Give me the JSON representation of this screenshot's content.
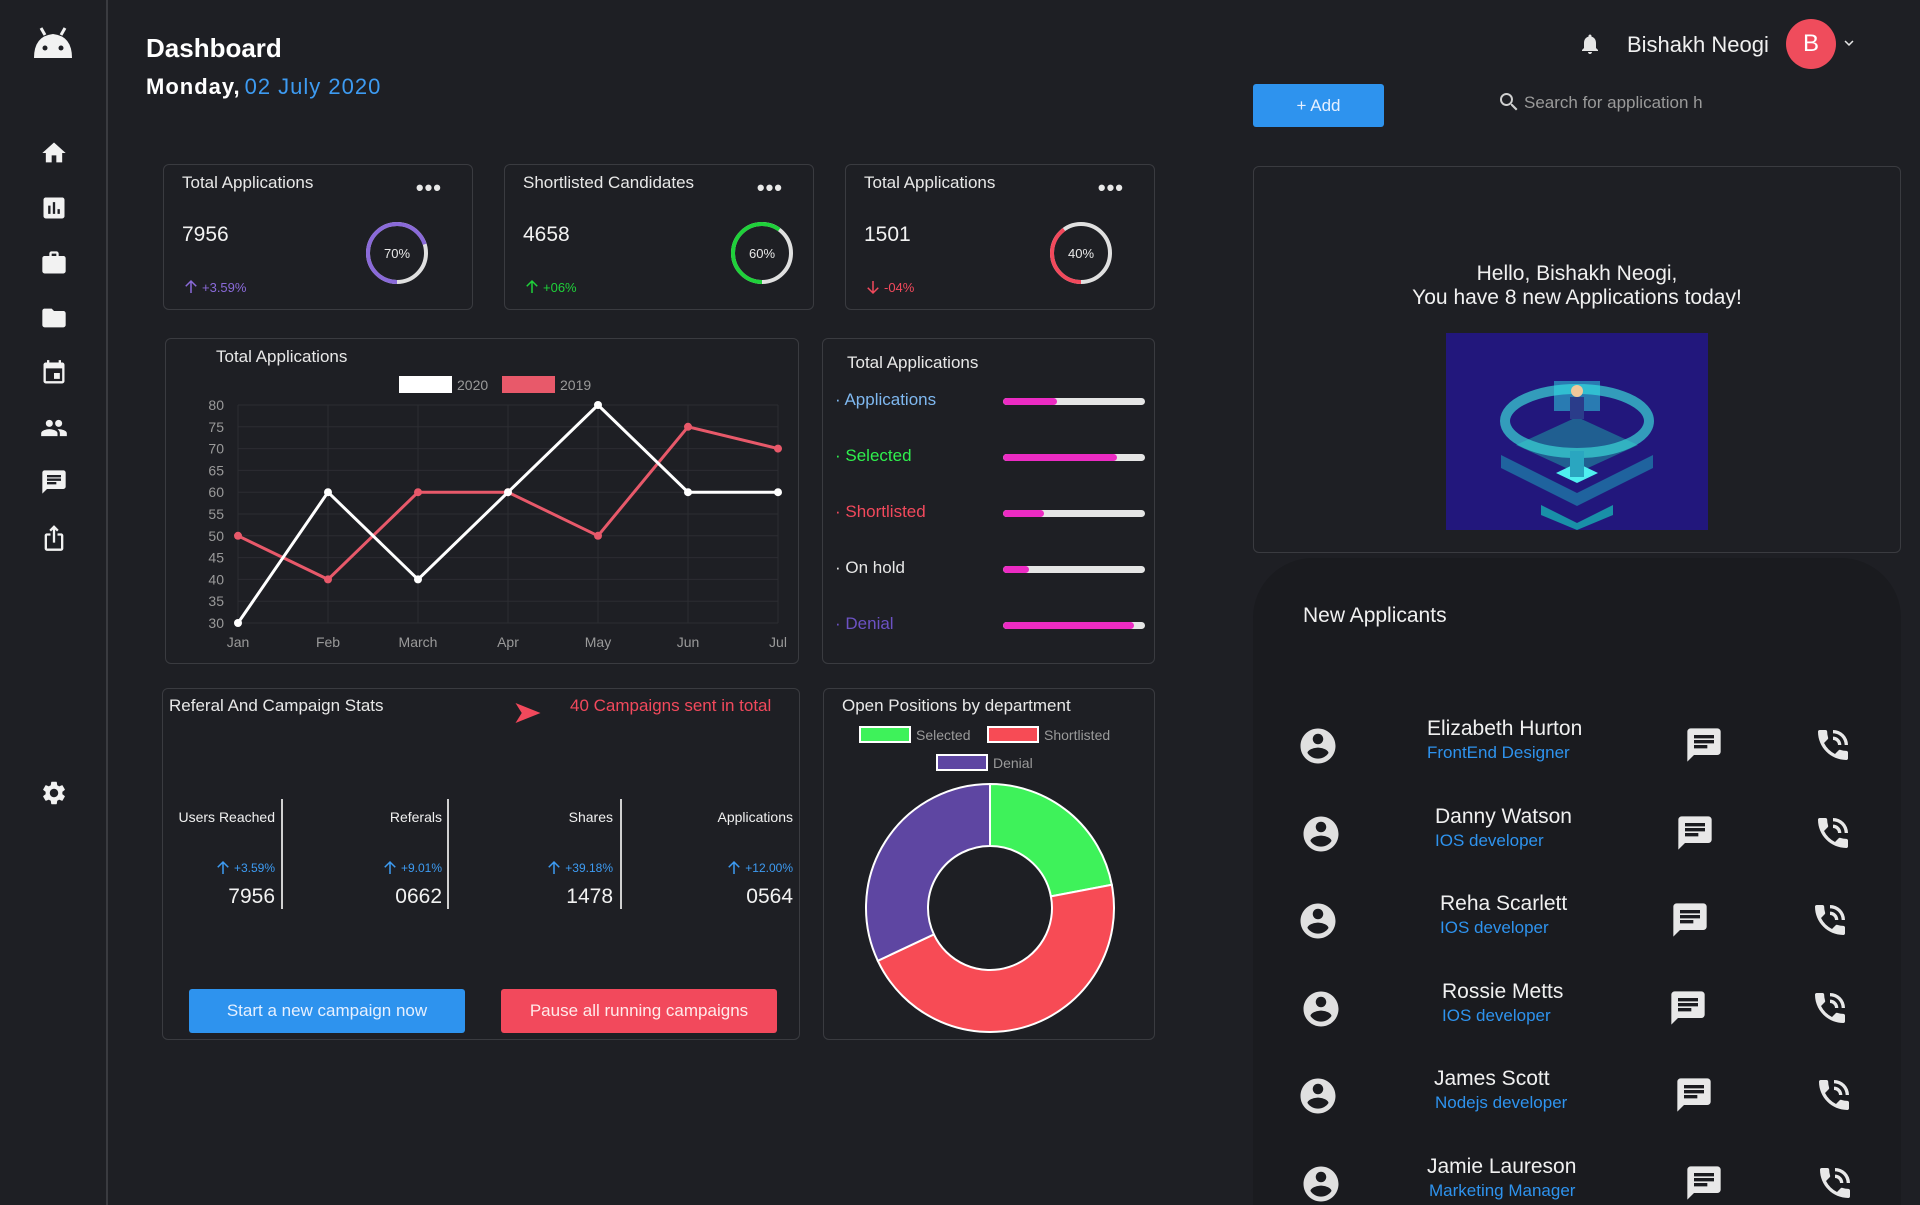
{
  "header": {
    "title": "Dashboard",
    "day": "Monday,",
    "date": "02 July 2020",
    "user_name": "Bishakh Neogi",
    "avatar_letter": "B",
    "add_label": "+ Add",
    "search_placeholder": "Search for application h"
  },
  "sidebar": {
    "icons": [
      "android-logo-icon",
      "home-icon",
      "bar-chart-icon",
      "briefcase-icon",
      "folder-icon",
      "calendar-icon",
      "people-icon",
      "message-icon",
      "share-icon",
      "settings-icon"
    ]
  },
  "stats": [
    {
      "title": "Total Applications",
      "value": "7956",
      "change": "+3.59%",
      "direction": "up",
      "percent": 70,
      "percent_label": "70%",
      "color": "#8a6ad9",
      "change_color": "#8a6ad9"
    },
    {
      "title": "Shortlisted Candidates",
      "value": "4658",
      "change": "+06%",
      "direction": "up",
      "percent": 60,
      "percent_label": "60%",
      "color": "#1fd13a",
      "change_color": "#1fd13a"
    },
    {
      "title": "Total Applications",
      "value": "1501",
      "change": "-04%",
      "direction": "down",
      "percent": 40,
      "percent_label": "40%",
      "color": "#f2495c",
      "change_color": "#f2495c"
    }
  ],
  "line_panel": {
    "title": "Total Applications"
  },
  "chart_data": [
    {
      "type": "line",
      "title": "Total Applications",
      "categories": [
        "Jan",
        "Feb",
        "March",
        "Apr",
        "May",
        "Jun",
        "Jul"
      ],
      "series": [
        {
          "name": "2020",
          "color": "#ffffff",
          "values": [
            30,
            60,
            40,
            60,
            80,
            60,
            60
          ]
        },
        {
          "name": "2019",
          "color": "#e8596a",
          "values": [
            50,
            40,
            60,
            60,
            50,
            75,
            70
          ]
        }
      ],
      "yticks": [
        "30",
        "35",
        "40",
        "45",
        "50",
        "55",
        "60",
        "65",
        "70",
        "75",
        "80"
      ],
      "ylim": [
        30,
        80
      ],
      "grid": true,
      "legend": "top"
    },
    {
      "type": "pie",
      "title": "Open Positions by department",
      "labels": [
        "Selected",
        "Shortlisted",
        "Denial"
      ],
      "values": [
        22,
        46,
        32
      ],
      "colors": [
        "#3ef25a",
        "#f74b55",
        "#5e46a2"
      ],
      "legend": "top"
    }
  ],
  "bars_panel": {
    "title": "Total Applications",
    "items": [
      {
        "label": "· Applications",
        "color": "#7fb8f0",
        "fraction": 0.38
      },
      {
        "label": "· Selected",
        "color": "#2ff04d",
        "fraction": 0.8
      },
      {
        "label": "· Shortlisted",
        "color": "#f2495c",
        "fraction": 0.29
      },
      {
        "label": "· On hold",
        "color": "#e6e6e6",
        "fraction": 0.18
      },
      {
        "label": "· Denial",
        "color": "#6c52c4",
        "fraction": 0.92
      }
    ]
  },
  "referral": {
    "title": "Referal And Campaign Stats",
    "campaign_text": "40 Campaigns sent in total",
    "columns": [
      {
        "label": "Users Reached",
        "change": "+3.59%",
        "value": "7956"
      },
      {
        "label": "Referals",
        "change": "+9.01%",
        "value": "0662"
      },
      {
        "label": "Shares",
        "change": "+39.18%",
        "value": "1478"
      },
      {
        "label": "Applications",
        "change": "+12.00%",
        "value": "0564"
      }
    ],
    "start_label": "Start a new campaign now",
    "pause_label": "Pause all running campaigns"
  },
  "positions": {
    "title": "Open Positions by department"
  },
  "greeting": {
    "line1": "Hello, Bishakh Neogi,",
    "line2": "You have 8 new Applications today!"
  },
  "applicants": {
    "title": "New Applicants",
    "items": [
      {
        "name": "Elizabeth Hurton",
        "role": "FrontEnd Designer"
      },
      {
        "name": "Danny Watson",
        "role": "IOS developer"
      },
      {
        "name": "Reha Scarlett",
        "role": "IOS developer"
      },
      {
        "name": "Rossie Metts",
        "role": "IOS developer"
      },
      {
        "name": "James Scott",
        "role": "Nodejs developer"
      },
      {
        "name": "Jamie Laureson",
        "role": "Marketing Manager"
      }
    ]
  }
}
